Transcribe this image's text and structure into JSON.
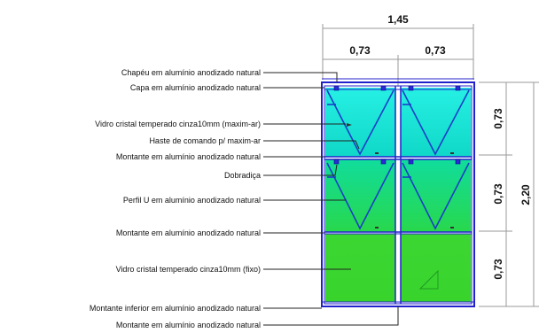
{
  "drawing": {
    "dimensions": {
      "total_width": "1,45",
      "pane_width_left": "0,73",
      "pane_width_right": "0,73",
      "row_height_top": "0,73",
      "row_height_middle": "0,73",
      "row_height_bottom": "0,73",
      "total_height": "2,20"
    },
    "labels": [
      "Chapéu em alumínio anodizado natural",
      "Capa em alumínio anodizado natural",
      "Vidro cristal temperado cinza10mm (maxim-ar)",
      "Haste de comando p/ maxim-ar",
      "Montante em alumínio anodizado natural",
      "Dobradiça",
      "Perfil U em alumínio anodizado natural",
      "Montante em alumínio anodizado natural",
      "Vidro cristal temperado cinza10mm (fixo)",
      "Montante inferior em alumínio anodizado natural",
      "Montante em alumínio anodizado natural"
    ],
    "colors": {
      "frame": "#2222cc",
      "glass_top": "#1ee8dc",
      "glass_middle": "#18e070",
      "glass_fixed": "#3ad42e",
      "dimension_line": "#9a9a9a",
      "leader_line": "#222222"
    }
  }
}
